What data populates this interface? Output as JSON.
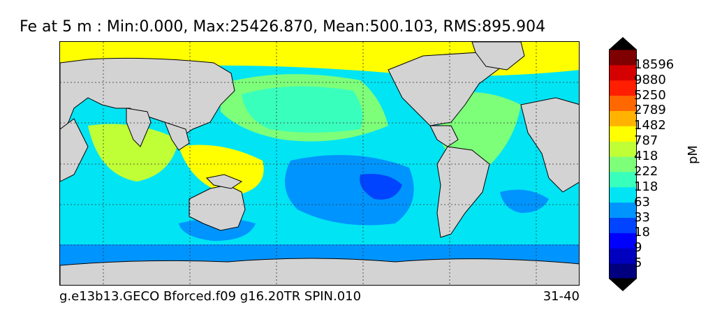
{
  "title": "Fe at 5 m : Min:0.000, Max:25426.870, Mean:500.103, RMS:895.904",
  "run_label": "g.e13b13.GECO Bforced.f09 g16.20TR SPIN.010",
  "years_label": "31-40",
  "colorbar": {
    "units": "pM",
    "levels": [
      "5",
      "9",
      "18",
      "33",
      "63",
      "118",
      "222",
      "418",
      "787",
      "1482",
      "2789",
      "5250",
      "9880",
      "18596"
    ],
    "colors": [
      "#00007f",
      "#0000bf",
      "#0000ff",
      "#0044ff",
      "#0094ff",
      "#00e4f4",
      "#39ffbd",
      "#7dff7a",
      "#c0ff36",
      "#ffff00",
      "#ffb300",
      "#ff6700",
      "#ff1e00",
      "#d50000",
      "#7f0000"
    ],
    "under_color": "#000000",
    "over_color": "#000000"
  },
  "land_color": "#d3d3d3",
  "ocean_base_color": "#00e4f4"
}
